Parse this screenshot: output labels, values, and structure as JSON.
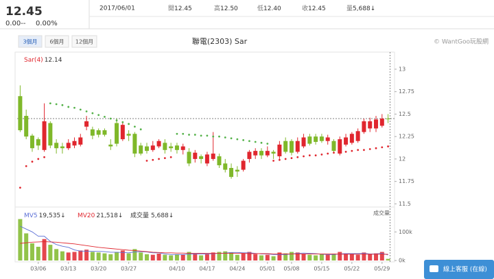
{
  "header": {
    "price": "12.45",
    "change": "0.00--",
    "change_pct": "0.00%",
    "date": "2017/06/01",
    "fields": [
      {
        "label": "開",
        "value": "12.45"
      },
      {
        "label": "高",
        "value": "12.50"
      },
      {
        "label": "低",
        "value": "12.40"
      },
      {
        "label": "收",
        "value": "12.45"
      },
      {
        "label": "量",
        "value": "5,688↓"
      }
    ]
  },
  "tabs": [
    "3個月",
    "6個月",
    "12個月"
  ],
  "selected_tab": 0,
  "copyright": "© WantGoo玩股網",
  "chat_button": "線上客服 (在線)",
  "chart_data": {
    "type": "candlestick",
    "title": "聯電(2303) Sar",
    "up_color": "#e0262e",
    "down_color": "#7fb82a",
    "categories": [
      null,
      null,
      null,
      "03/06",
      null,
      null,
      null,
      null,
      "03/13",
      null,
      null,
      null,
      null,
      "03/20",
      null,
      null,
      null,
      null,
      "03/27",
      null,
      null,
      null,
      null,
      null,
      null,
      null,
      "04/10",
      null,
      null,
      null,
      null,
      "04/17",
      null,
      null,
      null,
      null,
      "04/24",
      null,
      null,
      null,
      null,
      "05/01",
      null,
      null,
      null,
      "05/08",
      null,
      null,
      null,
      null,
      "05/15",
      null,
      null,
      null,
      null,
      "05/22",
      null,
      null,
      null,
      null,
      "05/29",
      null
    ],
    "open": [
      12.7,
      12.48,
      12.26,
      12.22,
      12.1,
      12.4,
      12.18,
      12.14,
      12.12,
      12.15,
      12.16,
      12.36,
      12.33,
      12.32,
      12.32,
      12.16,
      12.4,
      12.22,
      12.28,
      12.28,
      12.15,
      12.14,
      12.1,
      12.14,
      12.18,
      12.14,
      12.15,
      12.1,
      12.08,
      12.0,
      12.03,
      11.95,
      12.0,
      12.03,
      11.95,
      11.9,
      11.88,
      11.88,
      12.0,
      12.04,
      12.09,
      12.04,
      12.08,
      12.03,
      12.2,
      12.2,
      12.08,
      12.14,
      12.25,
      12.25,
      12.25,
      12.2,
      12.2,
      12.06,
      12.16,
      12.18,
      12.2,
      12.3,
      12.34,
      12.34,
      12.37,
      12.45
    ],
    "high": [
      12.82,
      12.55,
      12.28,
      12.24,
      12.62,
      12.42,
      12.22,
      12.18,
      12.22,
      12.24,
      12.28,
      12.48,
      12.36,
      12.34,
      12.34,
      12.22,
      12.45,
      12.42,
      12.32,
      12.3,
      12.18,
      12.18,
      12.2,
      12.22,
      12.22,
      12.18,
      12.18,
      12.17,
      12.12,
      12.1,
      12.05,
      12.08,
      12.3,
      12.06,
      12.0,
      11.95,
      11.92,
      12.0,
      12.1,
      12.12,
      12.12,
      12.14,
      12.1,
      12.2,
      12.24,
      12.22,
      12.24,
      12.28,
      12.28,
      12.28,
      12.28,
      12.27,
      12.22,
      12.25,
      12.28,
      12.3,
      12.34,
      12.45,
      12.46,
      12.48,
      12.5,
      12.5
    ],
    "low": [
      12.3,
      12.22,
      12.08,
      12.1,
      12.08,
      12.12,
      12.06,
      12.06,
      12.1,
      12.12,
      12.14,
      12.32,
      12.22,
      12.24,
      12.25,
      12.1,
      12.14,
      12.2,
      12.2,
      12.02,
      12.04,
      12.06,
      12.08,
      12.12,
      12.06,
      12.08,
      12.06,
      12.05,
      11.92,
      11.96,
      11.95,
      11.92,
      11.98,
      11.9,
      11.85,
      11.78,
      11.8,
      11.86,
      11.96,
      12.0,
      12.0,
      12.02,
      12.0,
      12.0,
      12.06,
      12.04,
      12.06,
      12.12,
      12.15,
      12.16,
      12.18,
      12.16,
      12.06,
      12.04,
      12.14,
      12.16,
      12.18,
      12.28,
      12.3,
      12.3,
      12.35,
      12.4
    ],
    "close": [
      12.32,
      12.25,
      12.12,
      12.15,
      12.42,
      12.15,
      12.12,
      12.12,
      12.18,
      12.2,
      12.24,
      12.42,
      12.26,
      12.27,
      12.27,
      12.14,
      12.17,
      12.38,
      12.26,
      12.06,
      12.06,
      12.09,
      12.15,
      12.2,
      12.1,
      12.12,
      12.1,
      12.14,
      11.95,
      12.07,
      12.0,
      12.05,
      12.06,
      11.93,
      11.88,
      11.8,
      11.86,
      11.98,
      12.08,
      12.09,
      12.04,
      12.09,
      12.06,
      12.16,
      12.08,
      12.07,
      12.2,
      12.24,
      12.17,
      12.19,
      12.2,
      12.24,
      12.09,
      12.22,
      12.24,
      12.28,
      12.31,
      12.42,
      12.42,
      12.44,
      12.45,
      12.45
    ],
    "sar": {
      "name": "Sar(4)",
      "below_color": "#e0262e",
      "above_color": "#55b24a",
      "values": [
        11.68,
        11.92,
        11.97,
        12.0,
        12.02,
        12.62,
        12.61,
        12.6,
        12.58,
        12.57,
        12.55,
        12.53,
        12.51,
        12.49,
        12.47,
        12.45,
        12.43,
        12.41,
        12.39,
        12.36,
        12.33,
        11.98,
        11.99,
        12.0,
        12.01,
        12.02,
        12.28,
        12.28,
        12.27,
        12.27,
        12.26,
        12.26,
        12.25,
        12.25,
        12.24,
        12.23,
        12.22,
        12.21,
        12.2,
        12.19,
        12.18,
        12.17,
        11.98,
        11.99,
        12.0,
        12.01,
        12.02,
        12.03,
        12.04,
        12.04,
        12.05,
        12.06,
        12.07,
        12.07,
        12.08,
        12.09,
        12.1,
        12.1,
        12.11,
        12.12,
        12.13,
        12.14
      ]
    },
    "ylim": [
      11.48,
      13.16
    ],
    "yticks": [
      11.5,
      11.75,
      12,
      12.25,
      12.5,
      12.75,
      13
    ],
    "volume": {
      "name": "成交量",
      "legend_value": "5,688↓",
      "axis_label": "成交量",
      "values": [
        145000,
        95000,
        60000,
        48000,
        75000,
        55000,
        40000,
        32000,
        28000,
        30000,
        35000,
        38000,
        30000,
        28000,
        25000,
        22000,
        30000,
        35000,
        25000,
        40000,
        28000,
        22000,
        20000,
        24000,
        20000,
        18000,
        22000,
        20000,
        30000,
        25000,
        18000,
        22000,
        28000,
        30000,
        32000,
        28000,
        20000,
        25000,
        30000,
        22000,
        18000,
        20000,
        15000,
        28000,
        25000,
        30000,
        28000,
        22000,
        20000,
        18000,
        22000,
        20000,
        24000,
        30000,
        25000,
        22000,
        20000,
        28000,
        22000,
        25000,
        30000,
        5688
      ],
      "ylim": [
        0,
        180000
      ],
      "yticks": [
        {
          "value": 0,
          "label": "0k"
        },
        {
          "value": 100000,
          "label": "100k"
        }
      ],
      "series": [
        {
          "name": "MV5",
          "color": "#5b6fd6",
          "legend_value": "19,535↓",
          "values": [
            120000,
            110000,
            100000,
            85000,
            85000,
            67000,
            56000,
            50000,
            46000,
            37000,
            33000,
            33000,
            32000,
            32000,
            31000,
            29000,
            29000,
            28000,
            27000,
            30000,
            31000,
            30000,
            27000,
            27000,
            23000,
            21000,
            21000,
            21000,
            22000,
            23000,
            23000,
            23000,
            24000,
            25000,
            26000,
            28000,
            28000,
            27000,
            27000,
            25000,
            23000,
            23000,
            21000,
            21000,
            21000,
            23000,
            25000,
            26000,
            25000,
            24000,
            22000,
            21000,
            21000,
            23000,
            24000,
            24000,
            24000,
            25000,
            23000,
            23000,
            25000,
            19535
          ]
        },
        {
          "name": "MV20",
          "color": "#e0262e",
          "legend_value": "21,518↓",
          "values": [
            60000,
            62000,
            64000,
            65000,
            66000,
            65000,
            64000,
            62000,
            60000,
            58000,
            55000,
            52000,
            49000,
            46000,
            44000,
            42000,
            40000,
            38000,
            36000,
            35000,
            33000,
            31000,
            29000,
            28000,
            27000,
            27000,
            26000,
            26000,
            25000,
            25000,
            25000,
            25000,
            25000,
            25000,
            25000,
            25000,
            25000,
            25000,
            24000,
            24000,
            24000,
            24000,
            23000,
            23000,
            23000,
            23000,
            23000,
            23000,
            23000,
            23000,
            23000,
            23000,
            23000,
            22000,
            22000,
            22000,
            22000,
            22000,
            22000,
            22000,
            22000,
            21518
          ]
        }
      ]
    }
  }
}
